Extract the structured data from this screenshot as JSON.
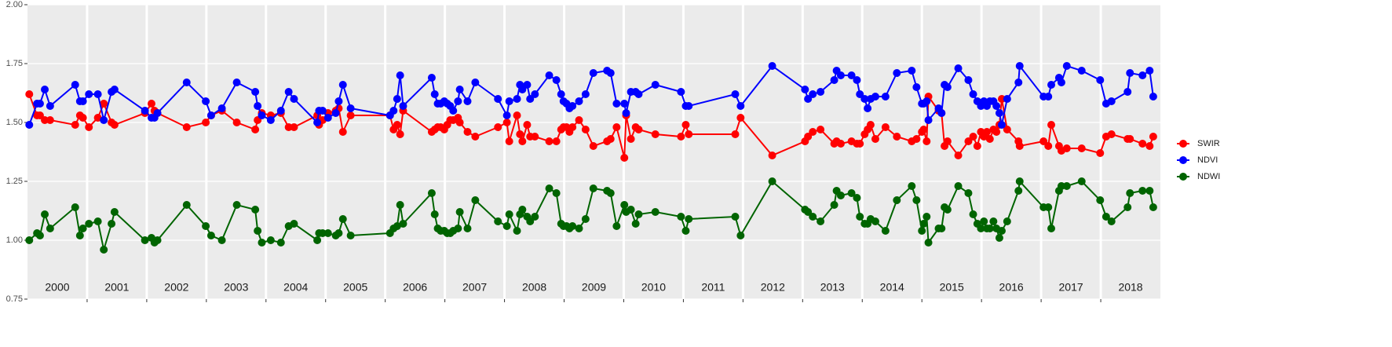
{
  "chart_data": {
    "type": "line",
    "x": [
      2000.03,
      2000.16,
      2000.21,
      2000.29,
      2000.38,
      2000.8,
      2000.88,
      2000.93,
      2001.03,
      2001.18,
      2001.28,
      2001.41,
      2001.46,
      2001.97,
      2002.08,
      2002.13,
      2002.18,
      2002.67,
      2002.99,
      2003.08,
      2003.26,
      2003.51,
      2003.82,
      2003.86,
      2003.93,
      2004.08,
      2004.25,
      2004.38,
      2004.47,
      2004.86,
      2004.89,
      2004.95,
      2005.04,
      2005.17,
      2005.22,
      2005.29,
      2005.42,
      2006.08,
      2006.14,
      2006.2,
      2006.25,
      2006.3,
      2006.78,
      2006.83,
      2006.88,
      2006.93,
      2006.99,
      2007.04,
      2007.09,
      2007.14,
      2007.22,
      2007.25,
      2007.38,
      2007.51,
      2007.89,
      2008.04,
      2008.08,
      2008.21,
      2008.26,
      2008.3,
      2008.38,
      2008.43,
      2008.51,
      2008.75,
      2008.87,
      2008.95,
      2008.99,
      2009.04,
      2009.09,
      2009.14,
      2009.25,
      2009.36,
      2009.49,
      2009.72,
      2009.78,
      2009.88,
      2010.01,
      2010.04,
      2010.12,
      2010.2,
      2010.25,
      2010.53,
      2010.96,
      2011.04,
      2011.09,
      2011.87,
      2011.96,
      2012.49,
      2013.04,
      2013.09,
      2013.17,
      2013.3,
      2013.53,
      2013.57,
      2013.64,
      2013.82,
      2013.91,
      2013.96,
      2014.04,
      2014.09,
      2014.14,
      2014.22,
      2014.39,
      2014.58,
      2014.83,
      2014.91,
      2015.0,
      2015.03,
      2015.08,
      2015.11,
      2015.28,
      2015.33,
      2015.38,
      2015.43,
      2015.61,
      2015.78,
      2015.86,
      2015.93,
      2015.99,
      2016.04,
      2016.09,
      2016.14,
      2016.2,
      2016.25,
      2016.3,
      2016.34,
      2016.43,
      2016.62,
      2016.64,
      2017.04,
      2017.12,
      2017.17,
      2017.3,
      2017.34,
      2017.43,
      2017.68,
      2017.99,
      2018.09,
      2018.18,
      2018.45,
      2018.49,
      2018.7,
      2018.82,
      2018.88
    ],
    "series": [
      {
        "name": "SWIR",
        "color": "#ff0000",
        "values": [
          1.62,
          1.53,
          1.53,
          1.51,
          1.51,
          1.49,
          1.53,
          1.52,
          1.48,
          1.52,
          1.58,
          1.5,
          1.49,
          1.54,
          1.58,
          1.55,
          1.54,
          1.48,
          1.5,
          1.53,
          1.55,
          1.5,
          1.47,
          1.51,
          1.54,
          1.53,
          1.54,
          1.48,
          1.48,
          1.53,
          1.49,
          1.51,
          1.54,
          1.55,
          1.56,
          1.46,
          1.53,
          1.53,
          1.47,
          1.49,
          1.45,
          1.55,
          1.46,
          1.47,
          1.48,
          1.48,
          1.47,
          1.49,
          1.51,
          1.51,
          1.52,
          1.5,
          1.46,
          1.44,
          1.48,
          1.5,
          1.42,
          1.53,
          1.45,
          1.42,
          1.49,
          1.44,
          1.44,
          1.42,
          1.42,
          1.47,
          1.48,
          1.48,
          1.46,
          1.48,
          1.51,
          1.47,
          1.4,
          1.42,
          1.43,
          1.48,
          1.35,
          1.53,
          1.43,
          1.48,
          1.47,
          1.45,
          1.44,
          1.49,
          1.45,
          1.45,
          1.52,
          1.36,
          1.42,
          1.44,
          1.46,
          1.47,
          1.41,
          1.42,
          1.41,
          1.42,
          1.41,
          1.41,
          1.45,
          1.47,
          1.49,
          1.43,
          1.48,
          1.44,
          1.42,
          1.43,
          1.46,
          1.47,
          1.42,
          1.61,
          1.55,
          1.54,
          1.4,
          1.42,
          1.36,
          1.42,
          1.44,
          1.4,
          1.46,
          1.44,
          1.46,
          1.43,
          1.47,
          1.46,
          1.49,
          1.6,
          1.47,
          1.42,
          1.4,
          1.42,
          1.4,
          1.49,
          1.4,
          1.38,
          1.39,
          1.39,
          1.37,
          1.44,
          1.45,
          1.43,
          1.43,
          1.41,
          1.4,
          1.44
        ]
      },
      {
        "name": "NDVI",
        "color": "#0000ff",
        "values": [
          1.49,
          1.58,
          1.58,
          1.64,
          1.57,
          1.66,
          1.59,
          1.59,
          1.62,
          1.62,
          1.51,
          1.63,
          1.64,
          1.55,
          1.52,
          1.52,
          1.54,
          1.67,
          1.59,
          1.53,
          1.56,
          1.67,
          1.63,
          1.57,
          1.53,
          1.51,
          1.55,
          1.63,
          1.6,
          1.5,
          1.55,
          1.55,
          1.52,
          1.54,
          1.59,
          1.66,
          1.56,
          1.53,
          1.55,
          1.6,
          1.7,
          1.57,
          1.69,
          1.62,
          1.58,
          1.58,
          1.59,
          1.58,
          1.57,
          1.55,
          1.59,
          1.64,
          1.59,
          1.67,
          1.6,
          1.53,
          1.59,
          1.6,
          1.66,
          1.64,
          1.66,
          1.6,
          1.62,
          1.7,
          1.68,
          1.62,
          1.59,
          1.58,
          1.56,
          1.57,
          1.59,
          1.62,
          1.71,
          1.72,
          1.71,
          1.58,
          1.58,
          1.54,
          1.63,
          1.63,
          1.62,
          1.66,
          1.63,
          1.57,
          1.57,
          1.62,
          1.57,
          1.74,
          1.64,
          1.6,
          1.62,
          1.63,
          1.68,
          1.72,
          1.7,
          1.7,
          1.68,
          1.62,
          1.6,
          1.56,
          1.6,
          1.61,
          1.61,
          1.71,
          1.72,
          1.65,
          1.58,
          1.58,
          1.59,
          1.51,
          1.56,
          1.54,
          1.66,
          1.65,
          1.73,
          1.68,
          1.62,
          1.59,
          1.57,
          1.59,
          1.57,
          1.59,
          1.59,
          1.57,
          1.54,
          1.49,
          1.6,
          1.67,
          1.74,
          1.61,
          1.61,
          1.66,
          1.69,
          1.67,
          1.74,
          1.72,
          1.68,
          1.58,
          1.59,
          1.63,
          1.71,
          1.7,
          1.72,
          1.61
        ]
      },
      {
        "name": "NDWI",
        "color": "#006400",
        "values": [
          1.0,
          1.03,
          1.02,
          1.11,
          1.05,
          1.14,
          1.02,
          1.05,
          1.07,
          1.08,
          0.96,
          1.07,
          1.12,
          1.0,
          1.01,
          0.99,
          1.0,
          1.15,
          1.06,
          1.02,
          1.0,
          1.15,
          1.13,
          1.04,
          0.99,
          1.0,
          0.99,
          1.06,
          1.07,
          1.0,
          1.03,
          1.03,
          1.03,
          1.02,
          1.03,
          1.09,
          1.02,
          1.03,
          1.05,
          1.06,
          1.15,
          1.07,
          1.2,
          1.11,
          1.05,
          1.04,
          1.04,
          1.03,
          1.03,
          1.04,
          1.05,
          1.12,
          1.05,
          1.17,
          1.08,
          1.06,
          1.11,
          1.04,
          1.11,
          1.13,
          1.1,
          1.08,
          1.1,
          1.22,
          1.2,
          1.07,
          1.06,
          1.06,
          1.05,
          1.06,
          1.05,
          1.09,
          1.22,
          1.21,
          1.2,
          1.06,
          1.15,
          1.12,
          1.13,
          1.07,
          1.11,
          1.12,
          1.1,
          1.04,
          1.09,
          1.1,
          1.02,
          1.25,
          1.13,
          1.12,
          1.1,
          1.08,
          1.15,
          1.21,
          1.19,
          1.2,
          1.18,
          1.1,
          1.07,
          1.07,
          1.09,
          1.08,
          1.04,
          1.17,
          1.23,
          1.17,
          1.04,
          1.07,
          1.1,
          0.99,
          1.05,
          1.05,
          1.14,
          1.13,
          1.23,
          1.2,
          1.11,
          1.07,
          1.05,
          1.08,
          1.05,
          1.05,
          1.08,
          1.05,
          1.01,
          1.04,
          1.08,
          1.21,
          1.25,
          1.14,
          1.14,
          1.05,
          1.21,
          1.23,
          1.23,
          1.25,
          1.17,
          1.1,
          1.08,
          1.14,
          1.2,
          1.21,
          1.21,
          1.14
        ]
      }
    ],
    "xlim": [
      2000,
      2019
    ],
    "xticks": [
      {
        "value": 2000.5,
        "label": "2000"
      },
      {
        "value": 2001.5,
        "label": "2001"
      },
      {
        "value": 2002.5,
        "label": "2002"
      },
      {
        "value": 2003.5,
        "label": "2003"
      },
      {
        "value": 2004.5,
        "label": "2004"
      },
      {
        "value": 2005.5,
        "label": "2005"
      },
      {
        "value": 2006.5,
        "label": "2006"
      },
      {
        "value": 2007.5,
        "label": "2007"
      },
      {
        "value": 2008.5,
        "label": "2008"
      },
      {
        "value": 2009.5,
        "label": "2009"
      },
      {
        "value": 2010.5,
        "label": "2010"
      },
      {
        "value": 2011.5,
        "label": "2011"
      },
      {
        "value": 2012.5,
        "label": "2012"
      },
      {
        "value": 2013.5,
        "label": "2013"
      },
      {
        "value": 2014.5,
        "label": "2014"
      },
      {
        "value": 2015.5,
        "label": "2015"
      },
      {
        "value": 2016.5,
        "label": "2016"
      },
      {
        "value": 2017.5,
        "label": "2017"
      },
      {
        "value": 2018.5,
        "label": "2018"
      }
    ],
    "xgrid": [
      2001,
      2002,
      2003,
      2004,
      2005,
      2006,
      2007,
      2008,
      2009,
      2010,
      2011,
      2012,
      2013,
      2014,
      2015,
      2016,
      2017,
      2018
    ],
    "ylim": [
      0.75,
      2.0
    ],
    "yticks": [
      {
        "value": 0.75,
        "label": "0.75"
      },
      {
        "value": 1.0,
        "label": "1.00"
      },
      {
        "value": 1.25,
        "label": "1.25"
      },
      {
        "value": 1.5,
        "label": "1.50"
      },
      {
        "value": 1.75,
        "label": "1.75"
      },
      {
        "value": 2.0,
        "label": "2.00"
      }
    ],
    "grid": true,
    "legend": "right"
  }
}
